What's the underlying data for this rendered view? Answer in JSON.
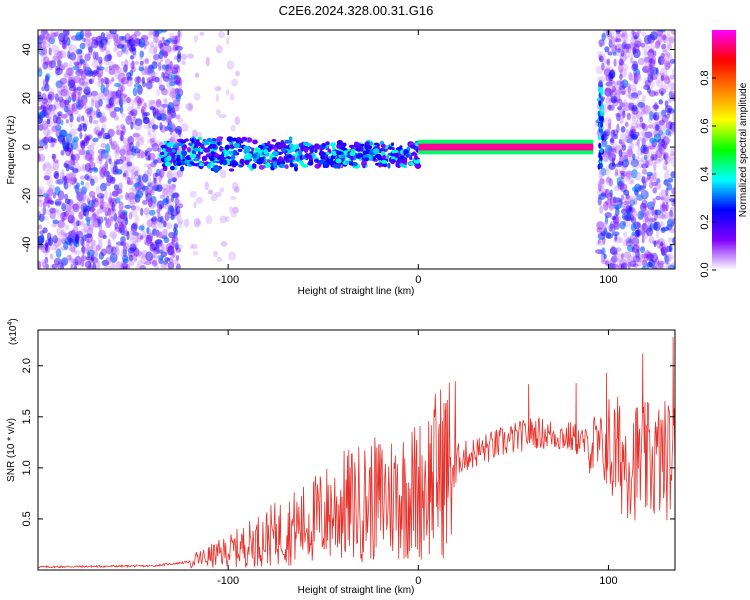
{
  "figure": {
    "title": "C2E6.2024.328.00.31.G16"
  },
  "chart_data": [
    {
      "type": "heatmap",
      "xlabel": "Height of straight line (km)",
      "ylabel": "Frequency (Hz)",
      "xlim": [
        -200,
        135
      ],
      "ylim": [
        -50,
        48
      ],
      "xticks": [
        -100,
        0,
        100
      ],
      "yticks": [
        -40,
        -20,
        0,
        20,
        40
      ],
      "colorbar": {
        "label": "Normalized spectral amplitude",
        "range": [
          0,
          1
        ],
        "ticks": [
          0.0,
          0.2,
          0.4,
          0.6,
          0.8
        ],
        "tick_labels": [
          "0.0",
          "0.2",
          "0.4",
          "0.6",
          "0.8"
        ],
        "colors": [
          "#ffffff",
          "#8000ff",
          "#0000ff",
          "#00ffff",
          "#00ff00",
          "#ffff00",
          "#ff8000",
          "#ff0000",
          "#ff00ff"
        ]
      },
      "regions": [
        {
          "x": [
            -200,
            -125
          ],
          "amplitude": 0.15,
          "description_free": true
        },
        {
          "x": [
            -125,
            -95
          ],
          "amplitude": 0.02
        },
        {
          "x": [
            -135,
            0
          ],
          "center_hz": -3,
          "amplitude": 0.35
        },
        {
          "x": [
            0,
            92
          ],
          "center_hz": 0,
          "amplitude": 0.95
        },
        {
          "x": [
            95,
            135
          ],
          "amplitude": 0.15
        }
      ],
      "grid": false,
      "legend": "right"
    },
    {
      "type": "line",
      "xlabel": "Height of straight line (km)",
      "ylabel": "SNR (10 * v/v)",
      "y_scale_label": "(x10",
      "y_scale_exp": "4",
      "y_scale_close": ")",
      "xlim": [
        -200,
        135
      ],
      "ylim": [
        0,
        2.35
      ],
      "xticks": [
        -100,
        0,
        100
      ],
      "yticks": [
        0.5,
        1.0,
        1.5,
        2.0
      ],
      "ytick_labels": [
        "0.5",
        "1.0",
        "1.5",
        "2.0"
      ],
      "series": [
        {
          "color": "#e8302a",
          "envelope": [
            {
              "x": -200,
              "y": 0.03
            },
            {
              "x": -140,
              "y": 0.04
            },
            {
              "x": -120,
              "y": 0.08
            },
            {
              "x": -100,
              "y": 0.18
            },
            {
              "x": -80,
              "y": 0.32
            },
            {
              "x": -60,
              "y": 0.45
            },
            {
              "x": -40,
              "y": 0.62
            },
            {
              "x": -20,
              "y": 0.7
            },
            {
              "x": 0,
              "y": 0.78
            },
            {
              "x": 10,
              "y": 0.95
            },
            {
              "x": 20,
              "y": 1.08
            },
            {
              "x": 40,
              "y": 1.22
            },
            {
              "x": 60,
              "y": 1.35
            },
            {
              "x": 80,
              "y": 1.3
            },
            {
              "x": 100,
              "y": 1.15
            },
            {
              "x": 120,
              "y": 1.05
            },
            {
              "x": 135,
              "y": 1.1
            }
          ],
          "peaks": [
            {
              "x": -20,
              "y": 1.08
            },
            {
              "x": 11,
              "y": 1.43
            },
            {
              "x": 58,
              "y": 1.82
            },
            {
              "x": 83,
              "y": 1.83
            },
            {
              "x": 99,
              "y": 1.93
            },
            {
              "x": 118,
              "y": 2.12
            },
            {
              "x": 134,
              "y": 2.28
            }
          ]
        }
      ],
      "grid": false
    }
  ]
}
